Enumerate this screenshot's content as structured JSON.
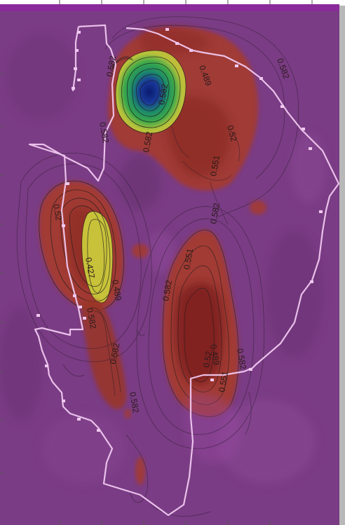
{
  "map": {
    "contour_levels": [
      "0.582",
      "0.582",
      "0.489",
      "0.52",
      "0.551",
      "0.582",
      "0.52",
      "0.582",
      "0.582",
      "0.551",
      "0.582",
      "0.489",
      "0.52",
      "0.551",
      "0.582",
      "0.582",
      "0.427",
      "0.489",
      "0.582",
      "0.582",
      "0.582"
    ],
    "colors": {
      "background": "#7a3c84",
      "frame": "#8a2a9a",
      "high_anomaly": "#a53a2e",
      "peak_anomaly": "#7a1d1a",
      "low_anomaly_yellow": "#c8c23a",
      "low_anomaly_green": "#2c9a4a",
      "low_anomaly_blue": "#1a2a8a",
      "survey_boundary": "#f0c8f0"
    }
  }
}
